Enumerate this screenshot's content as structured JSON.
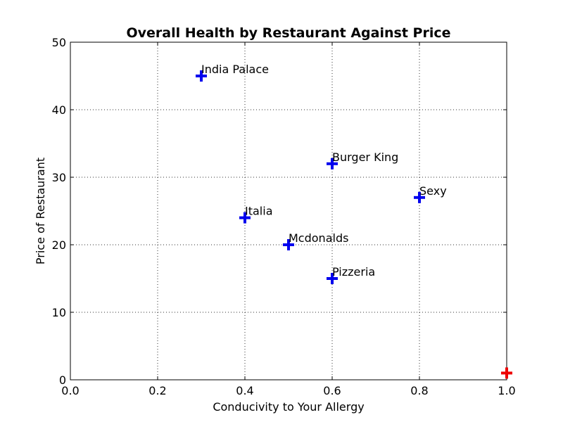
{
  "chart_data": {
    "type": "scatter",
    "title": "Overall Health by Restaurant Against Price",
    "xlabel": "Conducivity to Your Allergy",
    "ylabel": "Price of Restaurant",
    "xlim": [
      0.0,
      1.0
    ],
    "ylim": [
      0,
      50
    ],
    "grid": true,
    "x_ticks": [
      "0.0",
      "0.2",
      "0.4",
      "0.6",
      "0.8",
      "1.0"
    ],
    "y_ticks": [
      "0",
      "10",
      "20",
      "30",
      "40",
      "50"
    ],
    "points": [
      {
        "label": "India Palace",
        "x": 0.3,
        "y": 45,
        "color": "#0000ee"
      },
      {
        "label": "Burger King",
        "x": 0.6,
        "y": 32,
        "color": "#0000ee"
      },
      {
        "label": "Sexy",
        "x": 0.8,
        "y": 27,
        "color": "#0000ee"
      },
      {
        "label": "Italia",
        "x": 0.4,
        "y": 24,
        "color": "#0000ee"
      },
      {
        "label": "Mcdonalds",
        "x": 0.5,
        "y": 20,
        "color": "#0000ee"
      },
      {
        "label": "Pizzeria",
        "x": 0.6,
        "y": 15,
        "color": "#0000ee"
      },
      {
        "label": "",
        "x": 1.0,
        "y": 1,
        "color": "#ee0000"
      }
    ]
  }
}
